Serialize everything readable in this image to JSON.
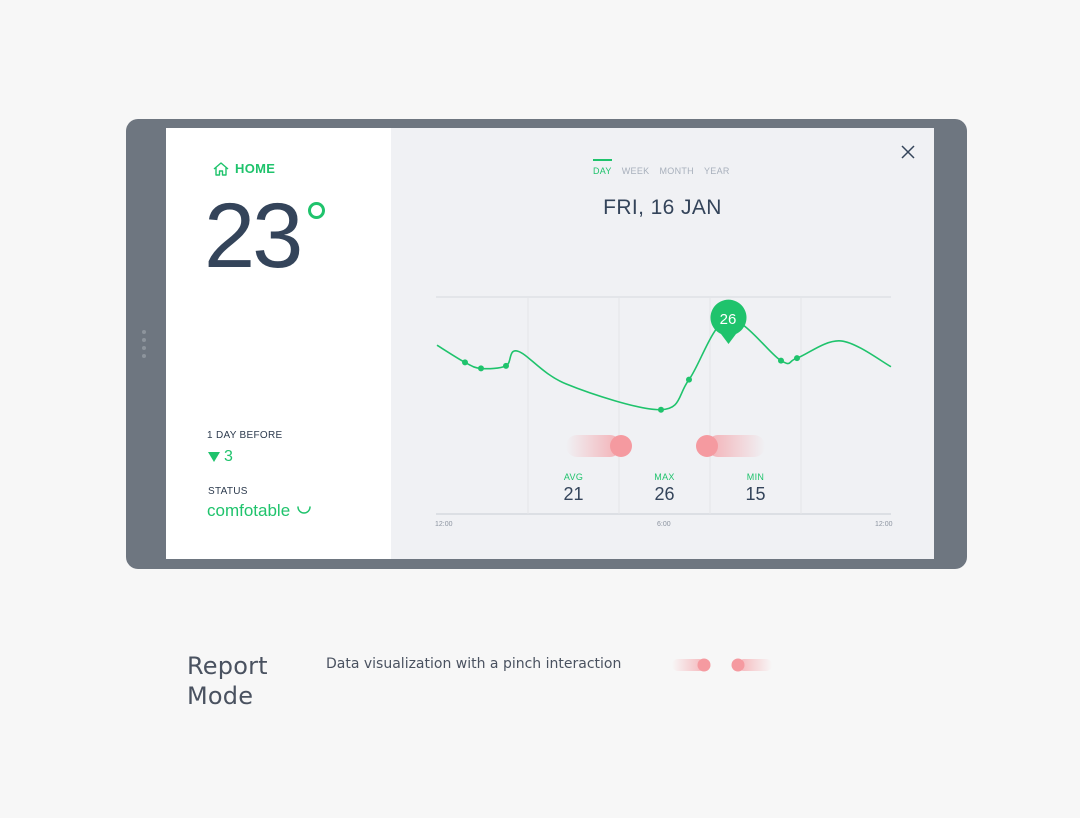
{
  "left_panel": {
    "home_label": "HOME",
    "temperature": "23",
    "day_before_label": "1 DAY BEFORE",
    "day_before_value": "3",
    "status_label": "STATUS",
    "status_value": "comfotable"
  },
  "right_panel": {
    "tabs": [
      {
        "label": "DAY",
        "active": true
      },
      {
        "label": "WEEK",
        "active": false
      },
      {
        "label": "MONTH",
        "active": false
      },
      {
        "label": "YEAR",
        "active": false
      }
    ],
    "date": "FRI, 16 JAN",
    "marker_value": "26",
    "stats": [
      {
        "label": "AVG",
        "value": "21"
      },
      {
        "label": "MAX",
        "value": "26"
      },
      {
        "label": "MIN",
        "value": "15"
      }
    ],
    "time_ticks": [
      "12:00",
      "6:00",
      "12:00"
    ]
  },
  "chart_data": {
    "type": "line",
    "series": [
      {
        "values": [
          23,
          21,
          20.3,
          20.6,
          22.3,
          18.5,
          15.5,
          19,
          26,
          21.2,
          21.5,
          23.5,
          20.5
        ]
      }
    ]
  },
  "caption": {
    "title_line1": "Report",
    "title_line2": "Mode",
    "description": "Data visualization with a pinch interaction"
  },
  "colors": {
    "accent": "#1fc36c",
    "text_dark": "#34445a",
    "device": "#6e7680",
    "pinch": "#f59aa0"
  }
}
